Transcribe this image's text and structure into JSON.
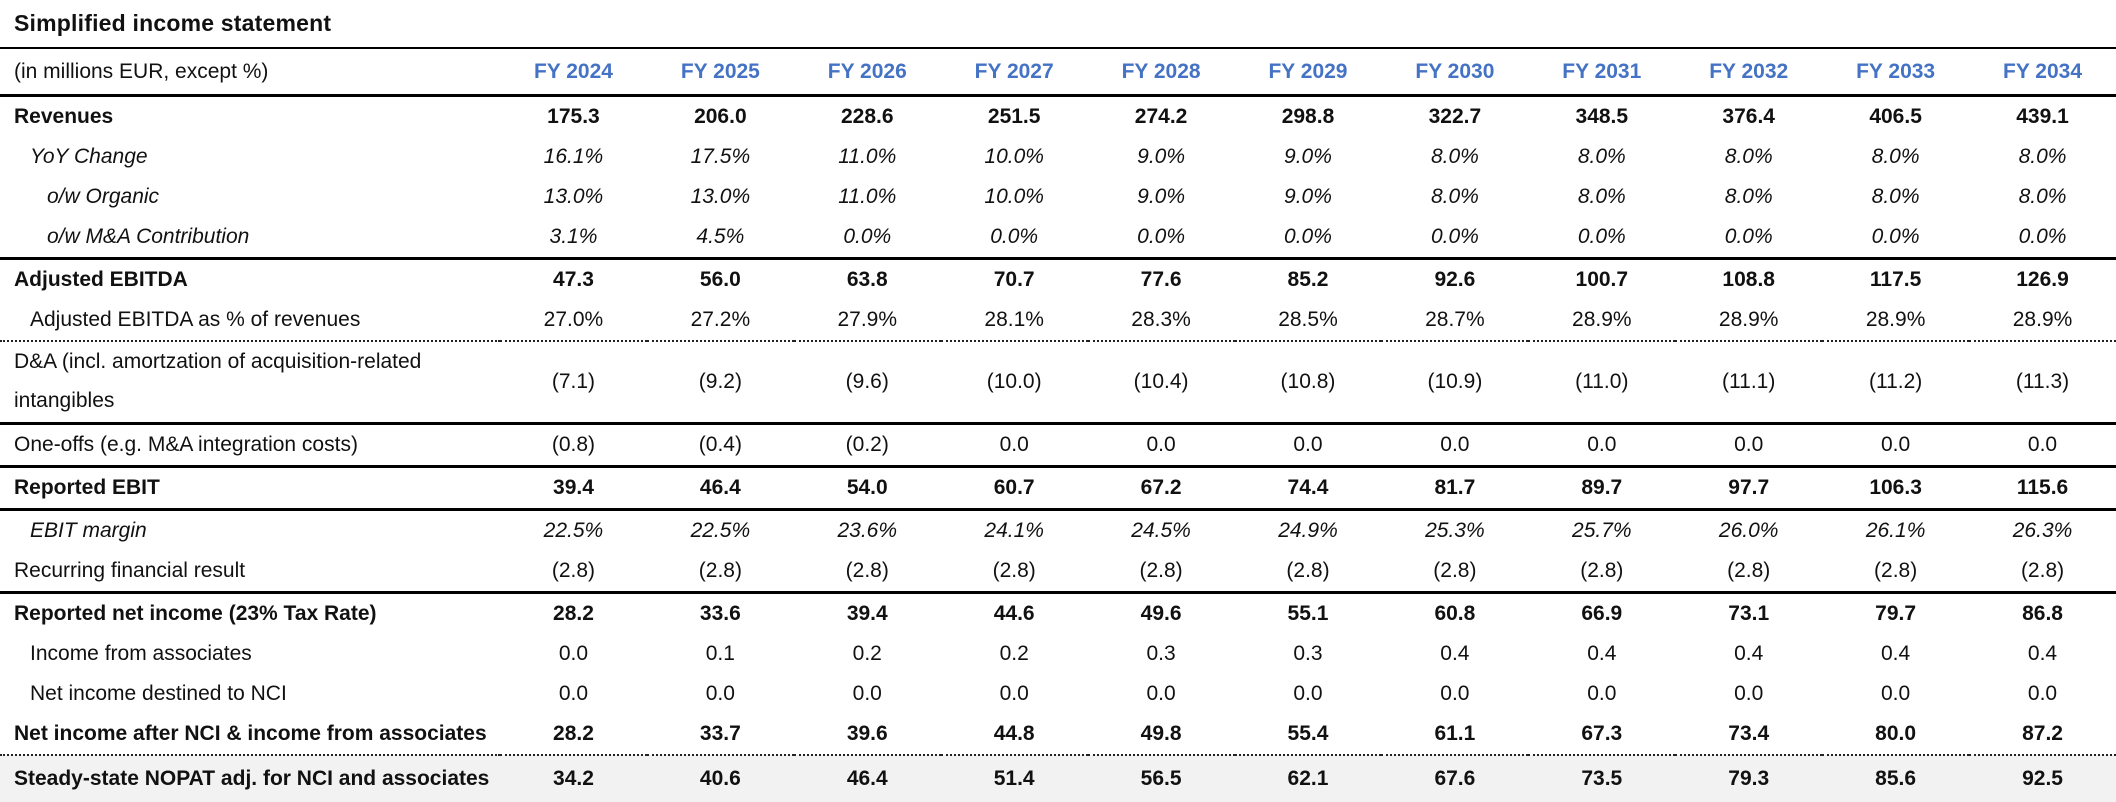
{
  "title": "Simplified income statement",
  "colors": {
    "year_header_blue": "#4472C4",
    "highlight_row_bg": "#F2F2F2",
    "text": "#111111"
  },
  "chart_data": {
    "type": "table",
    "title": "Simplified income statement",
    "unit_label": "(in millions EUR, except %)",
    "columns": [
      "FY 2024",
      "FY 2025",
      "FY 2026",
      "FY 2027",
      "FY 2028",
      "FY 2029",
      "FY 2030",
      "FY 2031",
      "FY 2032",
      "FY 2033",
      "FY 2034"
    ],
    "rows": [
      {
        "label": "Revenues",
        "style": "bold",
        "indent": 0,
        "border_top": "none",
        "values": [
          "175.3",
          "206.0",
          "228.6",
          "251.5",
          "274.2",
          "298.8",
          "322.7",
          "348.5",
          "376.4",
          "406.5",
          "439.1"
        ]
      },
      {
        "label": "YoY Change",
        "style": "italic",
        "indent": 1,
        "border_top": "none",
        "values": [
          "16.1%",
          "17.5%",
          "11.0%",
          "10.0%",
          "9.0%",
          "9.0%",
          "8.0%",
          "8.0%",
          "8.0%",
          "8.0%",
          "8.0%"
        ]
      },
      {
        "label": "o/w Organic",
        "style": "italic",
        "indent": 2,
        "border_top": "none",
        "values": [
          "13.0%",
          "13.0%",
          "11.0%",
          "10.0%",
          "9.0%",
          "9.0%",
          "8.0%",
          "8.0%",
          "8.0%",
          "8.0%",
          "8.0%"
        ]
      },
      {
        "label": "o/w M&A Contribution",
        "style": "italic",
        "indent": 2,
        "border_top": "none",
        "values": [
          "3.1%",
          "4.5%",
          "0.0%",
          "0.0%",
          "0.0%",
          "0.0%",
          "0.0%",
          "0.0%",
          "0.0%",
          "0.0%",
          "0.0%"
        ]
      },
      {
        "label": "Adjusted EBITDA",
        "style": "bold",
        "indent": 0,
        "border_top": "thick",
        "values": [
          "47.3",
          "56.0",
          "63.8",
          "70.7",
          "77.6",
          "85.2",
          "92.6",
          "100.7",
          "108.8",
          "117.5",
          "126.9"
        ]
      },
      {
        "label": "Adjusted EBITDA as % of revenues",
        "style": "normal",
        "indent": 1,
        "border_top": "none",
        "values": [
          "27.0%",
          "27.2%",
          "27.9%",
          "28.1%",
          "28.3%",
          "28.5%",
          "28.7%",
          "28.9%",
          "28.9%",
          "28.9%",
          "28.9%"
        ]
      },
      {
        "label": "D&A (incl. amortzation of acquisition-related intangibles",
        "style": "normal",
        "indent": 0,
        "border_top": "dotted",
        "wrap": true,
        "values": [
          "(7.1)",
          "(9.2)",
          "(9.6)",
          "(10.0)",
          "(10.4)",
          "(10.8)",
          "(10.9)",
          "(11.0)",
          "(11.1)",
          "(11.2)",
          "(11.3)"
        ]
      },
      {
        "label": "One-offs (e.g. M&A integration costs)",
        "style": "normal",
        "indent": 0,
        "border_top": "solid",
        "values": [
          "(0.8)",
          "(0.4)",
          "(0.2)",
          "0.0",
          "0.0",
          "0.0",
          "0.0",
          "0.0",
          "0.0",
          "0.0",
          "0.0"
        ]
      },
      {
        "label": "Reported EBIT",
        "style": "bold",
        "indent": 0,
        "border_top": "thick",
        "values": [
          "39.4",
          "46.4",
          "54.0",
          "60.7",
          "67.2",
          "74.4",
          "81.7",
          "89.7",
          "97.7",
          "106.3",
          "115.6"
        ]
      },
      {
        "label": "EBIT margin",
        "style": "italic",
        "indent": 1,
        "border_top": "thick",
        "values": [
          "22.5%",
          "22.5%",
          "23.6%",
          "24.1%",
          "24.5%",
          "24.9%",
          "25.3%",
          "25.7%",
          "26.0%",
          "26.1%",
          "26.3%"
        ]
      },
      {
        "label": "Recurring financial result",
        "style": "normal",
        "indent": 0,
        "border_top": "none",
        "values": [
          "(2.8)",
          "(2.8)",
          "(2.8)",
          "(2.8)",
          "(2.8)",
          "(2.8)",
          "(2.8)",
          "(2.8)",
          "(2.8)",
          "(2.8)",
          "(2.8)"
        ]
      },
      {
        "label": "Reported net income (23% Tax Rate)",
        "style": "bold",
        "indent": 0,
        "border_top": "thick",
        "values": [
          "28.2",
          "33.6",
          "39.4",
          "44.6",
          "49.6",
          "55.1",
          "60.8",
          "66.9",
          "73.1",
          "79.7",
          "86.8"
        ]
      },
      {
        "label": "Income from associates",
        "style": "normal",
        "indent": 1,
        "border_top": "none",
        "values": [
          "0.0",
          "0.1",
          "0.2",
          "0.2",
          "0.3",
          "0.3",
          "0.4",
          "0.4",
          "0.4",
          "0.4",
          "0.4"
        ]
      },
      {
        "label": "Net income destined to NCI",
        "style": "normal",
        "indent": 1,
        "border_top": "none",
        "values": [
          "0.0",
          "0.0",
          "0.0",
          "0.0",
          "0.0",
          "0.0",
          "0.0",
          "0.0",
          "0.0",
          "0.0",
          "0.0"
        ]
      },
      {
        "label": "Net income after NCI & income from associates",
        "style": "bold",
        "indent": 0,
        "border_top": "none",
        "values": [
          "28.2",
          "33.7",
          "39.6",
          "44.8",
          "49.8",
          "55.4",
          "61.1",
          "67.3",
          "73.4",
          "80.0",
          "87.2"
        ]
      },
      {
        "label": "Steady-state NOPAT adj. for NCI and associates",
        "style": "bold",
        "indent": 0,
        "border_top": "dotted",
        "highlight": true,
        "values": [
          "34.2",
          "40.6",
          "46.4",
          "51.4",
          "56.5",
          "62.1",
          "67.6",
          "73.5",
          "79.3",
          "85.6",
          "92.5"
        ]
      }
    ]
  }
}
